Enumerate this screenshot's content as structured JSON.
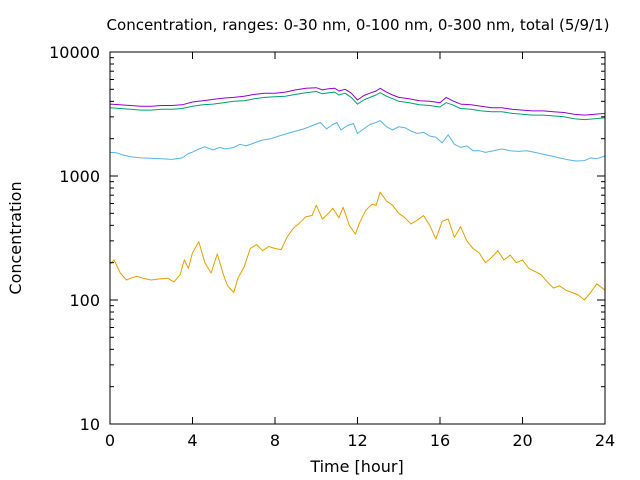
{
  "chart_data": {
    "type": "line",
    "title": "Concentration, ranges: 0-30 nm, 0-100 nm, 0-300 nm, total (5/9/1)",
    "xlabel": "Time [hour]",
    "ylabel": "Concentration",
    "xlim": [
      0,
      24
    ],
    "ylim": [
      10,
      10000
    ],
    "y_scale": "log",
    "grid": false,
    "legend": "none",
    "x_ticks": [
      0,
      4,
      8,
      12,
      16,
      20,
      24
    ],
    "x_tick_labels": [
      "0",
      "4",
      "8",
      "12",
      "16",
      "20",
      "24"
    ],
    "y_ticks": [
      10,
      100,
      1000,
      10000
    ],
    "y_tick_labels": [
      "10",
      "100",
      "1000",
      "10000"
    ],
    "series": [
      {
        "color": "#e69f00",
        "x": [
          0,
          0.2,
          0.5,
          0.8,
          1.0,
          1.3,
          1.6,
          2.0,
          2.4,
          2.8,
          3.1,
          3.4,
          3.6,
          3.8,
          4.0,
          4.3,
          4.6,
          4.9,
          5.2,
          5.5,
          5.7,
          6.0,
          6.2,
          6.5,
          6.8,
          7.1,
          7.4,
          7.7,
          8.0,
          8.3,
          8.6,
          8.9,
          9.2,
          9.5,
          9.8,
          10.0,
          10.3,
          10.6,
          10.8,
          11.1,
          11.3,
          11.6,
          11.9,
          12.1,
          12.4,
          12.7,
          12.9,
          13.1,
          13.4,
          13.7,
          14.0,
          14.3,
          14.6,
          14.9,
          15.2,
          15.5,
          15.8,
          16.1,
          16.4,
          16.7,
          17.0,
          17.3,
          17.6,
          17.9,
          18.2,
          18.5,
          18.8,
          19.1,
          19.4,
          19.7,
          20.0,
          20.3,
          20.6,
          20.9,
          21.2,
          21.5,
          21.8,
          22.1,
          22.4,
          22.7,
          23.0,
          23.3,
          23.6,
          24
        ],
        "y": [
          195,
          210,
          165,
          145,
          150,
          155,
          150,
          145,
          148,
          150,
          140,
          160,
          210,
          180,
          240,
          295,
          200,
          165,
          235,
          160,
          130,
          115,
          150,
          185,
          260,
          280,
          250,
          270,
          260,
          255,
          325,
          380,
          420,
          470,
          480,
          580,
          450,
          500,
          550,
          460,
          560,
          400,
          340,
          420,
          530,
          590,
          580,
          740,
          630,
          580,
          500,
          460,
          410,
          440,
          480,
          400,
          310,
          430,
          450,
          320,
          390,
          300,
          260,
          240,
          200,
          220,
          250,
          210,
          230,
          200,
          210,
          180,
          170,
          160,
          140,
          125,
          130,
          120,
          115,
          110,
          100,
          115,
          135,
          120
        ]
      },
      {
        "color": "#56b4e9",
        "x": [
          0,
          0.3,
          0.6,
          1.0,
          1.5,
          2.0,
          2.5,
          3.0,
          3.5,
          3.8,
          4.0,
          4.3,
          4.6,
          5.0,
          5.3,
          5.6,
          6.0,
          6.3,
          6.6,
          7.0,
          7.4,
          7.8,
          8.2,
          8.6,
          9.0,
          9.4,
          9.8,
          10.2,
          10.5,
          10.8,
          11.0,
          11.2,
          11.5,
          11.8,
          12.0,
          12.3,
          12.6,
          12.9,
          13.1,
          13.4,
          13.7,
          14.0,
          14.3,
          14.6,
          14.9,
          15.2,
          15.5,
          15.8,
          16.1,
          16.4,
          16.7,
          17.0,
          17.3,
          17.6,
          17.9,
          18.2,
          18.6,
          19.0,
          19.4,
          19.8,
          20.2,
          20.6,
          21.0,
          21.4,
          21.8,
          22.2,
          22.6,
          23.0,
          23.3,
          23.6,
          24
        ],
        "y": [
          1550,
          1540,
          1480,
          1430,
          1400,
          1390,
          1380,
          1360,
          1400,
          1520,
          1560,
          1650,
          1720,
          1620,
          1700,
          1650,
          1700,
          1800,
          1750,
          1850,
          1950,
          2000,
          2100,
          2200,
          2300,
          2400,
          2550,
          2700,
          2400,
          2600,
          2700,
          2350,
          2550,
          2650,
          2200,
          2400,
          2600,
          2700,
          2800,
          2500,
          2350,
          2500,
          2450,
          2300,
          2200,
          2250,
          2100,
          2050,
          1850,
          2150,
          1800,
          1700,
          1750,
          1600,
          1600,
          1550,
          1600,
          1650,
          1600,
          1580,
          1600,
          1550,
          1500,
          1450,
          1400,
          1350,
          1320,
          1330,
          1400,
          1380,
          1450
        ]
      },
      {
        "color": "#009e73",
        "x": [
          0,
          0.5,
          1.0,
          1.5,
          2.0,
          2.5,
          3.0,
          3.5,
          4.0,
          4.5,
          5.0,
          5.5,
          6.0,
          6.5,
          7.0,
          7.5,
          8.0,
          8.5,
          9.0,
          9.5,
          10.0,
          10.3,
          10.6,
          10.9,
          11.1,
          11.4,
          11.7,
          12.0,
          12.3,
          12.6,
          12.9,
          13.1,
          13.4,
          13.7,
          14.0,
          14.5,
          15.0,
          15.5,
          16.0,
          16.3,
          16.6,
          17.0,
          17.5,
          18.0,
          18.5,
          19.0,
          19.5,
          20.0,
          20.5,
          21.0,
          21.5,
          22.0,
          22.5,
          23.0,
          23.5,
          24
        ],
        "y": [
          3550,
          3500,
          3450,
          3400,
          3400,
          3450,
          3450,
          3500,
          3650,
          3750,
          3800,
          3900,
          4000,
          4050,
          4200,
          4300,
          4350,
          4400,
          4550,
          4700,
          4800,
          4600,
          4700,
          4750,
          4500,
          4650,
          4300,
          3800,
          4100,
          4300,
          4500,
          4700,
          4400,
          4200,
          4000,
          3900,
          3750,
          3700,
          3600,
          3900,
          3750,
          3500,
          3450,
          3350,
          3300,
          3300,
          3200,
          3150,
          3100,
          3100,
          3050,
          3000,
          2900,
          2850,
          2900,
          2950
        ]
      },
      {
        "color": "#9400d3",
        "x": [
          0,
          0.5,
          1.0,
          1.5,
          2.0,
          2.5,
          3.0,
          3.5,
          4.0,
          4.5,
          5.0,
          5.5,
          6.0,
          6.5,
          7.0,
          7.5,
          8.0,
          8.5,
          9.0,
          9.5,
          10.0,
          10.3,
          10.6,
          10.9,
          11.1,
          11.4,
          11.7,
          12.0,
          12.3,
          12.6,
          12.9,
          13.1,
          13.4,
          13.7,
          14.0,
          14.5,
          15.0,
          15.5,
          16.0,
          16.3,
          16.6,
          17.0,
          17.5,
          18.0,
          18.5,
          19.0,
          19.5,
          20.0,
          20.5,
          21.0,
          21.5,
          22.0,
          22.5,
          23.0,
          23.5,
          24
        ],
        "y": [
          3800,
          3750,
          3700,
          3650,
          3650,
          3700,
          3700,
          3750,
          3950,
          4050,
          4150,
          4250,
          4300,
          4400,
          4550,
          4650,
          4650,
          4750,
          4950,
          5100,
          5150,
          4950,
          5050,
          5100,
          4850,
          5000,
          4650,
          4100,
          4450,
          4650,
          4850,
          5100,
          4750,
          4500,
          4300,
          4200,
          4050,
          4000,
          3900,
          4300,
          4050,
          3800,
          3750,
          3650,
          3550,
          3550,
          3450,
          3400,
          3350,
          3350,
          3300,
          3250,
          3150,
          3100,
          3150,
          3200
        ]
      }
    ]
  }
}
